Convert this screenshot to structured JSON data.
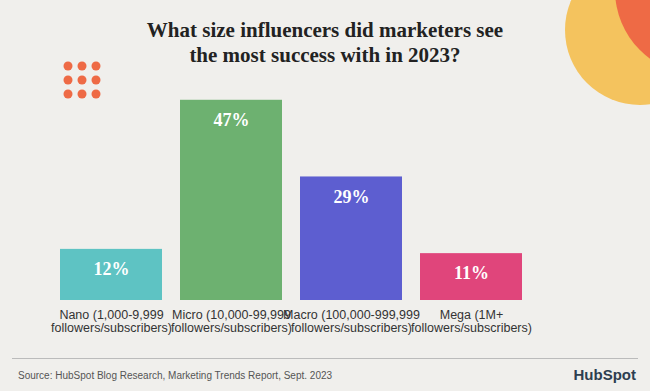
{
  "chart_data": {
    "type": "bar",
    "title": "What size influencers did marketers see\nthe most success with in 2023?",
    "categories": [
      "Nano (1,000-9,999\nfollowers/subscribers)",
      "Micro (10,000-99,999\nfollowers/subscribers)",
      "Macro (100,000-999,999\nfollowers/subscribers)",
      "Mega (1M+\nfollowers/subscribers)"
    ],
    "values": [
      12,
      47,
      29,
      11
    ],
    "value_labels": [
      "12%",
      "47%",
      "29%",
      "11%"
    ],
    "colors": [
      "#5ec3c3",
      "#6db170",
      "#5d5ed0",
      "#e0457b"
    ],
    "ylim": [
      0,
      50
    ],
    "data_labels": true,
    "tick_labels": "x",
    "caption": "Source: HubSpot Blog Research, Marketing Trends Report, Sept. 2023",
    "logo_text": "HubSpot"
  }
}
